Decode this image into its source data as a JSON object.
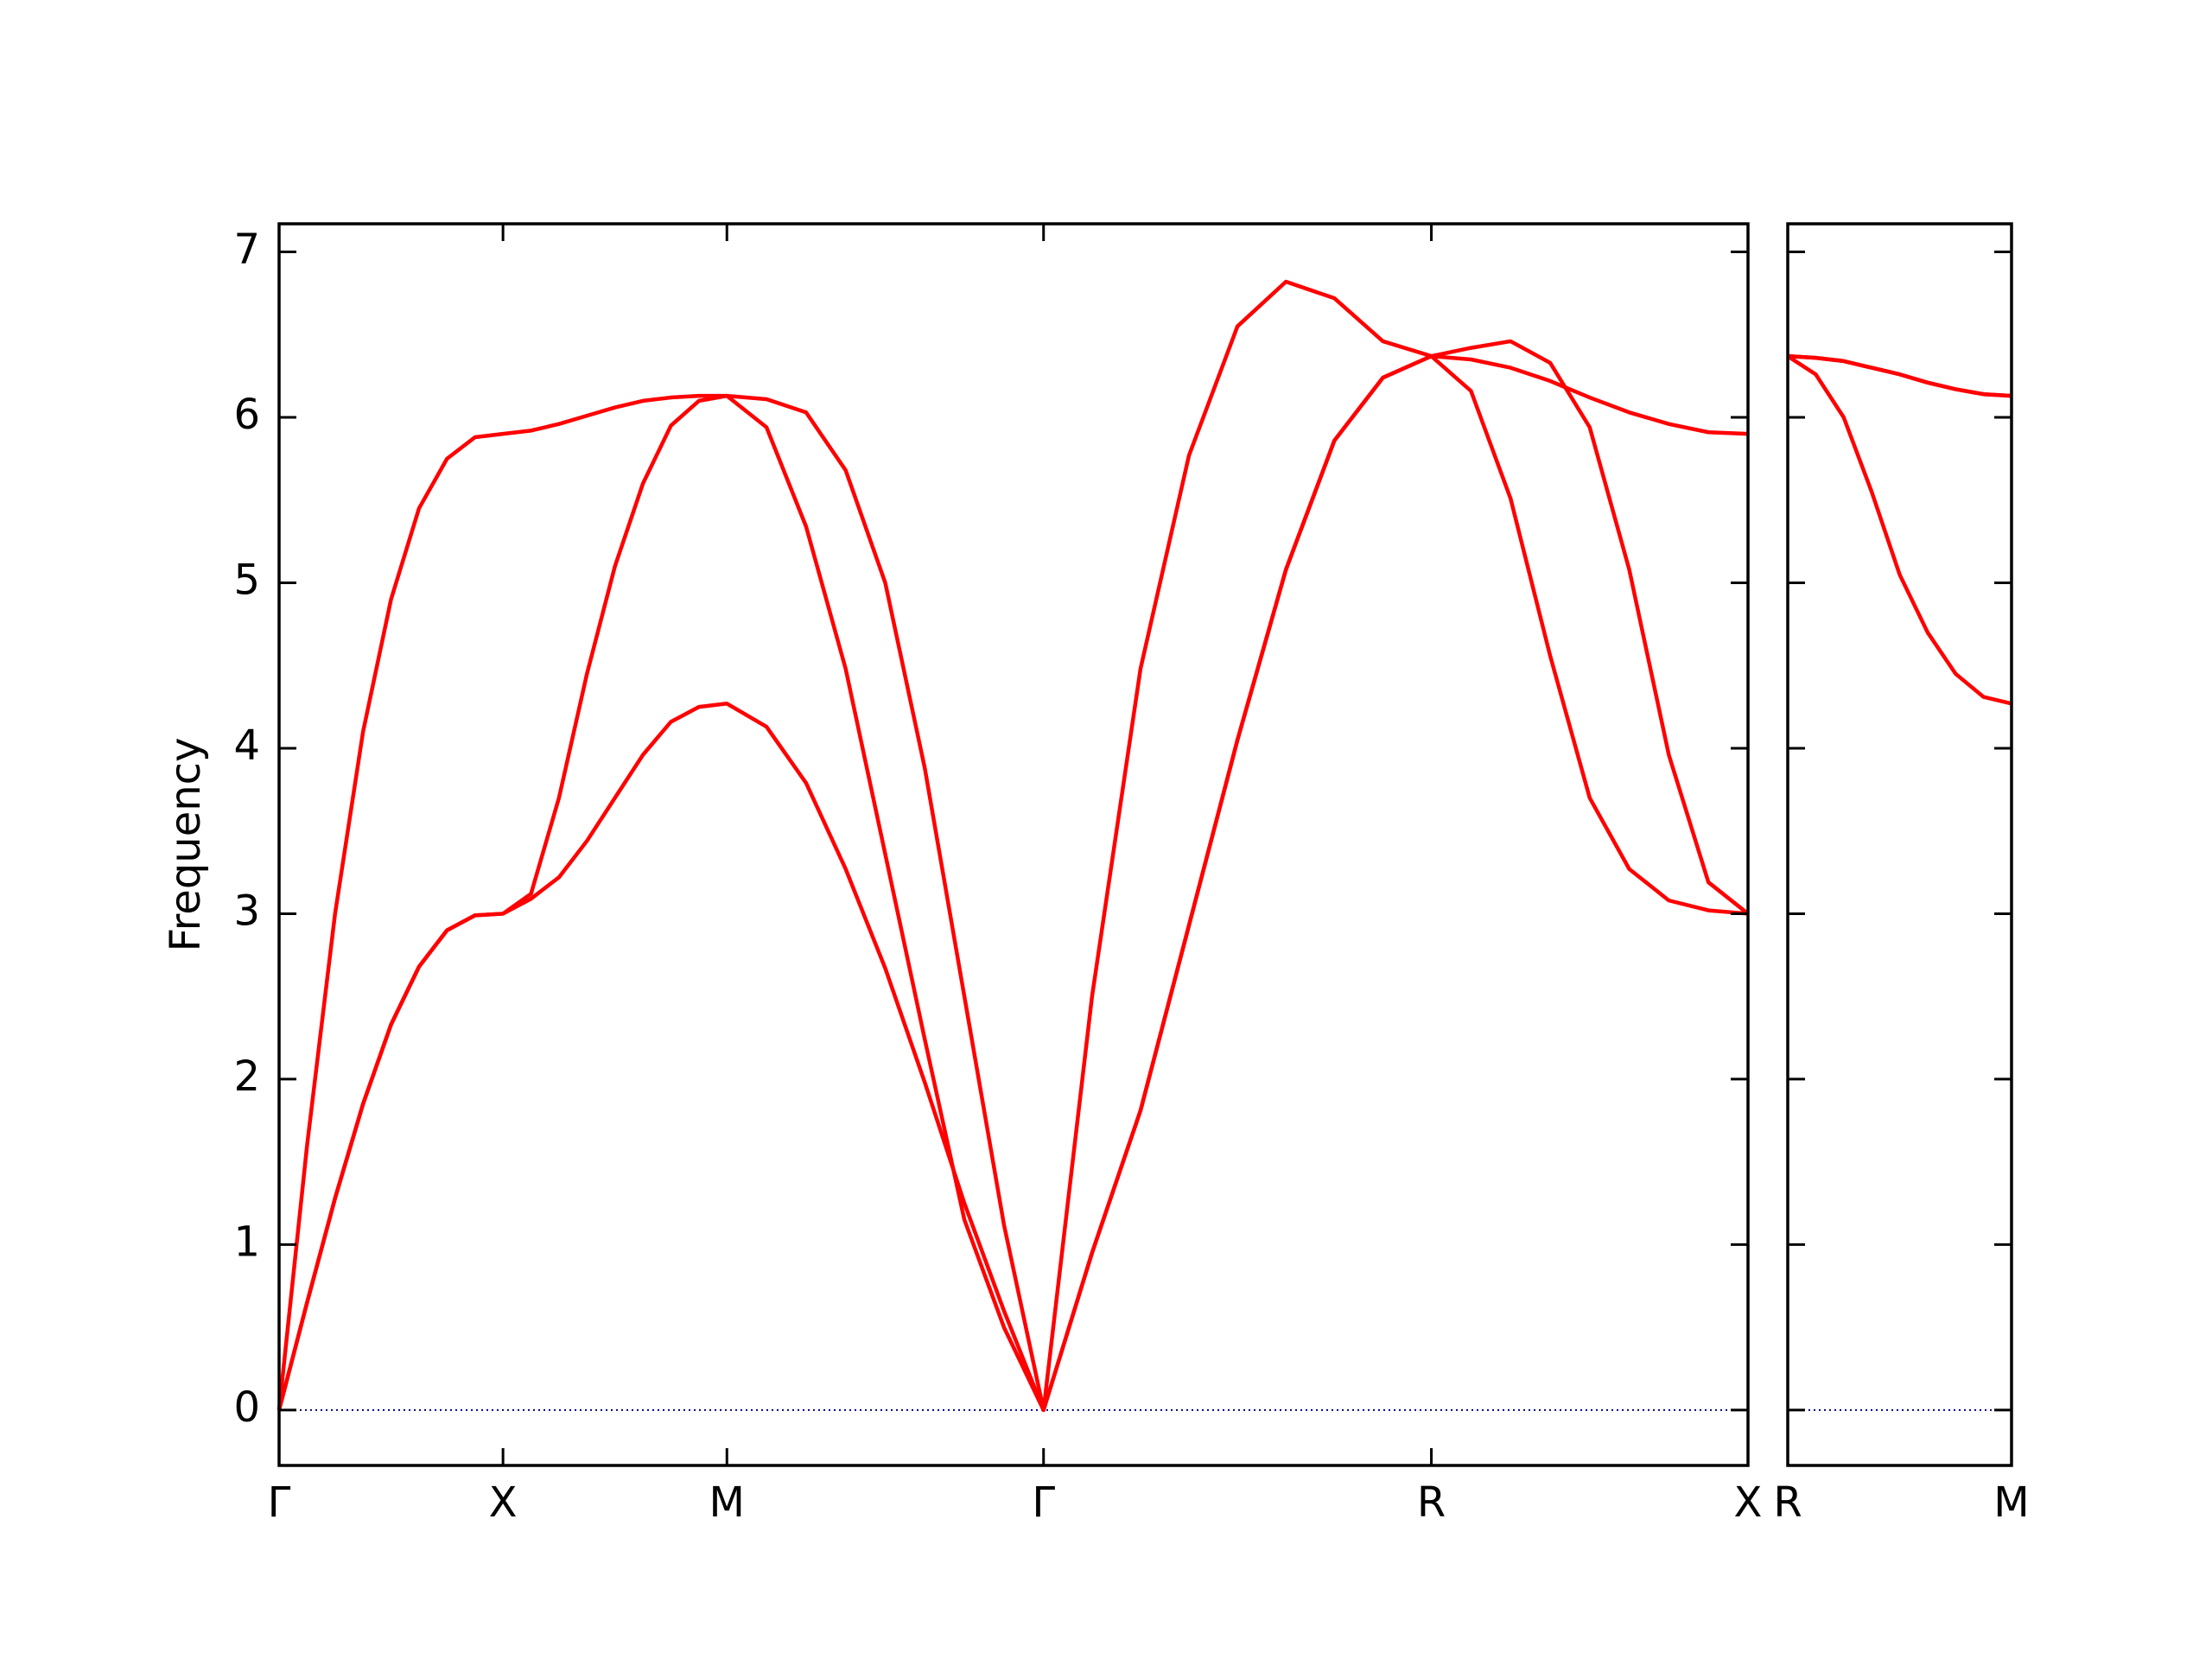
{
  "chart_data": [
    {
      "type": "line",
      "ylabel": "Frequency",
      "x": [
        0,
        0.0625,
        0.125,
        0.1875,
        0.25,
        0.3125,
        0.375,
        0.4375,
        0.5,
        0.5625,
        0.625,
        0.6875,
        0.75,
        0.8125,
        0.875,
        0.9375,
        1.0,
        1.0884,
        1.1768,
        1.2652,
        1.3536,
        1.4419,
        1.5303,
        1.6187,
        1.7071,
        1.8154,
        1.9236,
        2.0319,
        2.1401,
        2.2484,
        2.3566,
        2.4649,
        2.5731,
        2.6615,
        2.7499,
        2.8383,
        2.9267,
        3.015,
        3.1034,
        3.1918,
        3.2802
      ],
      "series": [
        {
          "color": "#ff0000",
          "values": [
            0,
            0.65,
            1.28,
            1.85,
            2.33,
            2.68,
            2.9,
            2.99,
            3.0,
            3.09,
            3.22,
            3.44,
            3.7,
            3.96,
            4.16,
            4.25,
            4.27,
            4.13,
            3.79,
            3.27,
            2.67,
            1.98,
            1.25,
            0.6,
            0,
            0.95,
            1.81,
            2.93,
            4.05,
            5.08,
            5.86,
            6.24,
            6.37,
            6.16,
            5.51,
            4.56,
            3.7,
            3.27,
            3.08,
            3.02,
            3.0
          ]
        },
        {
          "color": "#ff0000",
          "values": [
            0,
            0.65,
            1.28,
            1.85,
            2.33,
            2.68,
            2.9,
            2.99,
            3.0,
            3.12,
            3.7,
            4.45,
            5.1,
            5.6,
            5.95,
            6.1,
            6.13,
            5.94,
            5.34,
            4.48,
            3.36,
            2.24,
            1.15,
            0.5,
            0,
            0.95,
            1.81,
            2.93,
            4.05,
            5.08,
            5.86,
            6.24,
            6.37,
            6.35,
            6.3,
            6.22,
            6.12,
            6.03,
            5.96,
            5.91,
            5.9
          ]
        },
        {
          "color": "#ff0000",
          "values": [
            0,
            1.6,
            3.0,
            4.1,
            4.9,
            5.45,
            5.75,
            5.88,
            5.9,
            5.92,
            5.96,
            6.01,
            6.06,
            6.1,
            6.12,
            6.13,
            6.13,
            6.11,
            6.03,
            5.68,
            5.0,
            3.88,
            2.5,
            1.12,
            0,
            2.5,
            4.48,
            5.77,
            6.55,
            6.82,
            6.72,
            6.46,
            6.37,
            6.42,
            6.46,
            6.33,
            5.94,
            5.08,
            3.96,
            3.19,
            3.0
          ]
        }
      ],
      "xlim": [
        0,
        3.2802
      ],
      "xticks": [
        {
          "value": 0,
          "label": "Γ"
        },
        {
          "value": 0.5,
          "label": "X"
        },
        {
          "value": 1.0,
          "label": "M"
        },
        {
          "value": 1.7071,
          "label": "Γ"
        },
        {
          "value": 2.5731,
          "label": "R"
        },
        {
          "value": 3.2802,
          "label": "X"
        }
      ],
      "ylim": [
        -0.335,
        7.17
      ],
      "yticks": [
        0,
        1,
        2,
        3,
        4,
        5,
        6,
        7
      ],
      "show_ytick_labels": true,
      "hline": {
        "y": 0,
        "color": "#00008b"
      }
    },
    {
      "type": "line",
      "x": [
        3.2802,
        3.3427,
        3.4052,
        3.4677,
        3.5302,
        3.5927,
        3.6552,
        3.7177,
        3.7802
      ],
      "series": [
        {
          "color": "#ff0000",
          "values": [
            6.37,
            6.26,
            6.0,
            5.55,
            5.05,
            4.7,
            4.45,
            4.31,
            4.27
          ]
        },
        {
          "color": "#ff0000",
          "values": [
            6.37,
            6.36,
            6.34,
            6.3,
            6.26,
            6.21,
            6.17,
            6.14,
            6.13
          ]
        },
        {
          "color": "#ff0000",
          "values": [
            6.37,
            6.36,
            6.34,
            6.3,
            6.26,
            6.21,
            6.17,
            6.14,
            6.13
          ]
        }
      ],
      "xlim": [
        3.2802,
        3.7802
      ],
      "xticks": [
        {
          "value": 3.2802,
          "label": "R"
        },
        {
          "value": 3.7802,
          "label": "M"
        }
      ],
      "ylim": [
        -0.335,
        7.17
      ],
      "yticks": [
        0,
        1,
        2,
        3,
        4,
        5,
        6,
        7
      ],
      "show_ytick_labels": false,
      "hline": {
        "y": 0,
        "color": "#00008b"
      }
    }
  ]
}
